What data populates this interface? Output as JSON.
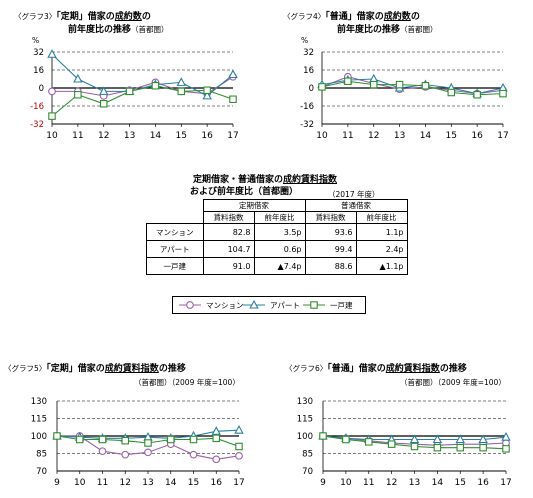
{
  "charts_text": {
    "c3": {
      "prefix": "〈グラフ3〉",
      "title_a": "「定期」借家の",
      "title_u": "成約数",
      "title_b": "の",
      "line2": "前年度比の推移",
      "line2_small": "（首都圏）",
      "unit": "%"
    },
    "c4": {
      "prefix": "〈グラフ4〉",
      "title_a": "「普通」借家の",
      "title_u": "成約数",
      "title_b": "の",
      "line2": "前年度比の推移",
      "line2_small": "（首都圏）",
      "unit": "%"
    },
    "c5": {
      "prefix": "〈グラフ5〉",
      "title_a": "「定期」借家の",
      "title_u": "成約賃料指数",
      "title_b": "の推移",
      "sub": "（首都圏）（2009 年度=100）"
    },
    "c6": {
      "prefix": "〈グラフ6〉",
      "title_a": "「普通」借家の",
      "title_u": "成約賃料指数",
      "title_b": "の推移",
      "sub": "（首都圏）（2009 年度=100）"
    }
  },
  "table": {
    "title_a": "定期借家・普通借家の",
    "title_u": "成約賃料指数",
    "title2": "および前年度比（首都圏）",
    "year_note": "（2017 年度）",
    "group_headers": [
      "定期借家",
      "普通借家"
    ],
    "col_headers": [
      "賃料指数",
      "前年度比",
      "賃料指数",
      "前年度比"
    ],
    "rows": [
      {
        "label": "マンション",
        "v": [
          "82.8",
          "3.5p",
          "93.6",
          "1.1p"
        ]
      },
      {
        "label": "アパート",
        "v": [
          "104.7",
          "0.6p",
          "99.4",
          "2.4p"
        ]
      },
      {
        "label": "一戸建",
        "v": [
          "91.0",
          "▲7.4p",
          "88.6",
          "▲1.1p"
        ]
      }
    ]
  },
  "legend": [
    "マンション",
    "アパート",
    "一戸建"
  ],
  "colors": {
    "mansion": "#9b5fa8",
    "apart": "#2a7fa0",
    "house": "#2f8f2f",
    "zero": "#000000",
    "grid": "#555555"
  },
  "chart_data": [
    {
      "type": "line",
      "id": "c3",
      "ylim": [
        -32,
        32
      ],
      "yticks": [
        "32",
        "16",
        "0",
        "-16",
        "-32"
      ],
      "ytick_vals": [
        32,
        16,
        0,
        -16,
        -32
      ],
      "x": [
        10,
        11,
        12,
        13,
        14,
        15,
        16,
        17
      ],
      "series": [
        {
          "name": "マンション",
          "marker": "circle",
          "values": [
            -3,
            -3,
            -7,
            -2,
            5,
            -3,
            -5,
            10
          ]
        },
        {
          "name": "アパート",
          "marker": "triangle",
          "values": [
            30,
            8,
            -3,
            -3,
            3,
            5,
            -7,
            12
          ]
        },
        {
          "name": "一戸建",
          "marker": "square",
          "values": [
            -25,
            -6,
            -14,
            -3,
            2,
            -3,
            -2,
            -10
          ]
        }
      ]
    },
    {
      "type": "line",
      "id": "c4",
      "ylim": [
        -32,
        32
      ],
      "yticks": [
        "32",
        "16",
        "0",
        "-16",
        "-32"
      ],
      "ytick_vals": [
        32,
        16,
        0,
        -16,
        -32
      ],
      "x": [
        10,
        11,
        12,
        13,
        14,
        15,
        16,
        17
      ],
      "series": [
        {
          "name": "マンション",
          "marker": "circle",
          "values": [
            1,
            10,
            4,
            -1,
            1,
            -2,
            -5,
            -2
          ]
        },
        {
          "name": "アパート",
          "marker": "triangle",
          "values": [
            3,
            7,
            8,
            0,
            3,
            0,
            -5,
            0
          ]
        },
        {
          "name": "一戸建",
          "marker": "square",
          "values": [
            1,
            6,
            3,
            3,
            2,
            -4,
            -6,
            -5
          ]
        }
      ]
    },
    {
      "type": "line",
      "id": "c5",
      "ylim": [
        70,
        130
      ],
      "yticks": [
        "130",
        "115",
        "100",
        "85",
        "70"
      ],
      "ytick_vals": [
        130,
        115,
        100,
        85,
        70
      ],
      "x": [
        9,
        10,
        11,
        12,
        13,
        14,
        15,
        16,
        17
      ],
      "series": [
        {
          "name": "マンション",
          "marker": "circle",
          "values": [
            100,
            100,
            87,
            84,
            86,
            93,
            84,
            80,
            83
          ]
        },
        {
          "name": "アパート",
          "marker": "triangle",
          "values": [
            100,
            99,
            98,
            98,
            99,
            98,
            100,
            104,
            105
          ]
        },
        {
          "name": "一戸建",
          "marker": "square",
          "values": [
            100,
            97,
            97,
            96,
            94,
            97,
            97,
            98,
            91
          ]
        }
      ]
    },
    {
      "type": "line",
      "id": "c6",
      "ylim": [
        70,
        130
      ],
      "yticks": [
        "130",
        "115",
        "100",
        "85",
        "70"
      ],
      "ytick_vals": [
        130,
        115,
        100,
        85,
        70
      ],
      "x": [
        9,
        10,
        11,
        12,
        13,
        14,
        15,
        16,
        17
      ],
      "series": [
        {
          "name": "マンション",
          "marker": "circle",
          "values": [
            100,
            98,
            96,
            94,
            93,
            92,
            93,
            93,
            94
          ]
        },
        {
          "name": "アパート",
          "marker": "triangle",
          "values": [
            100,
            98,
            97,
            97,
            97,
            97,
            97,
            97,
            99
          ]
        },
        {
          "name": "一戸建",
          "marker": "square",
          "values": [
            100,
            97,
            95,
            93,
            91,
            90,
            90,
            90,
            89
          ]
        }
      ]
    }
  ]
}
